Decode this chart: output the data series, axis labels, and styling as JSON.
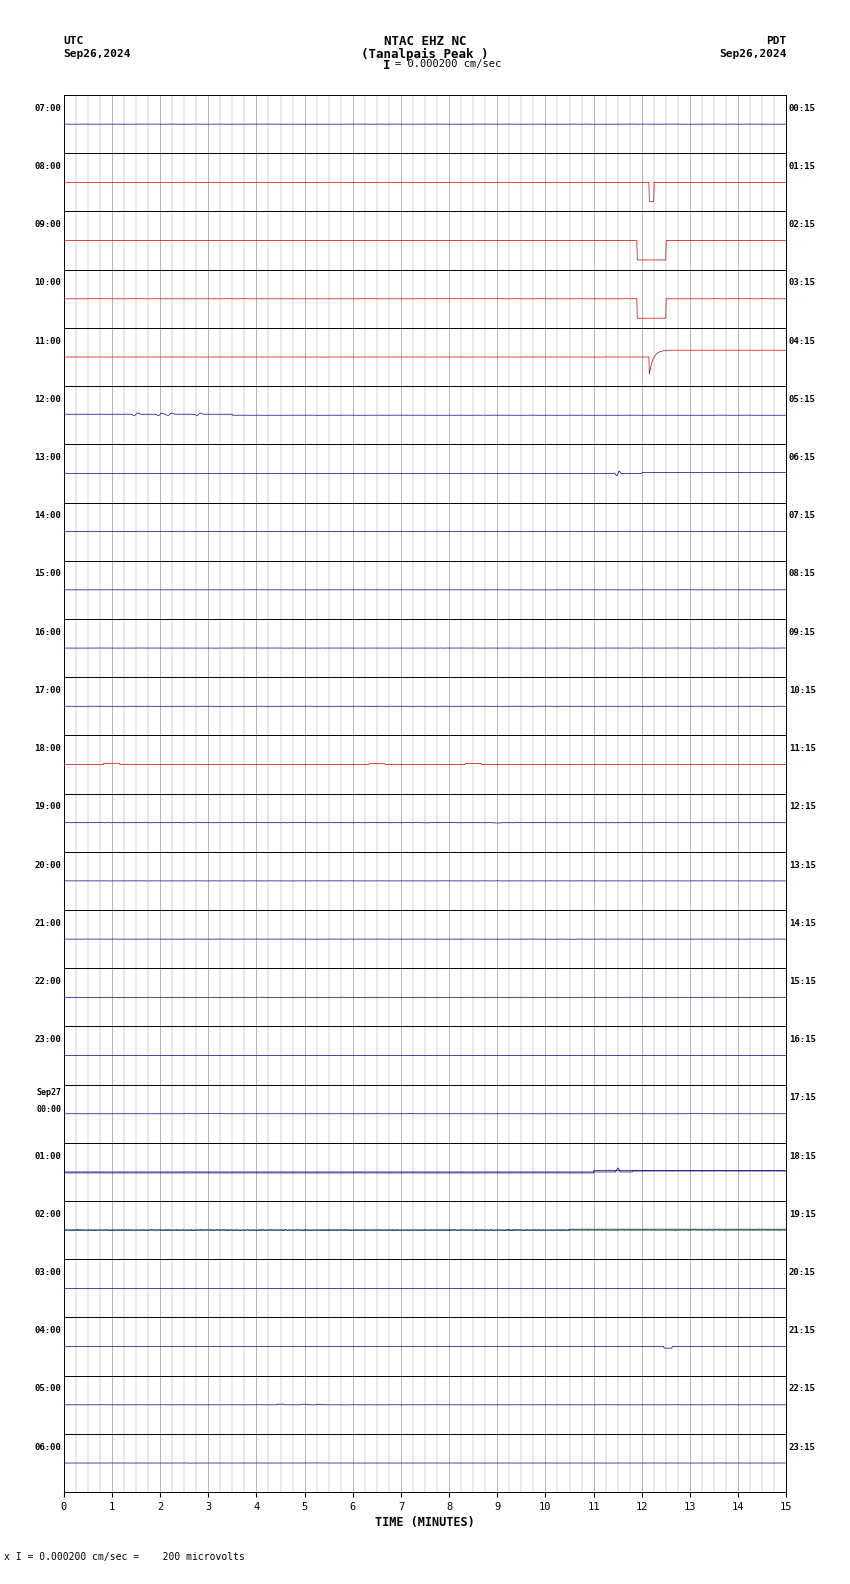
{
  "title_line1": "NTAC EHZ NC",
  "title_line2": "(Tanalpais Peak )",
  "scale_text": "= 0.000200 cm/sec",
  "utc_label": "UTC",
  "utc_date": "Sep26,2024",
  "pdt_label": "PDT",
  "pdt_date": "Sep26,2024",
  "xlabel": "TIME (MINUTES)",
  "bottom_note": "x I = 0.000200 cm/sec =    200 microvolts",
  "x_min": 0,
  "x_max": 15,
  "num_rows": 24,
  "row_labels_left": [
    "07:00",
    "08:00",
    "09:00",
    "10:00",
    "11:00",
    "12:00",
    "13:00",
    "14:00",
    "15:00",
    "16:00",
    "17:00",
    "18:00",
    "19:00",
    "20:00",
    "21:00",
    "22:00",
    "23:00",
    "Sep27\n00:00",
    "01:00",
    "02:00",
    "03:00",
    "04:00",
    "05:00",
    "06:00"
  ],
  "row_labels_right": [
    "00:15",
    "01:15",
    "02:15",
    "03:15",
    "04:15",
    "05:15",
    "06:15",
    "07:15",
    "08:15",
    "09:15",
    "10:15",
    "11:15",
    "12:15",
    "13:15",
    "14:15",
    "15:15",
    "16:15",
    "17:15",
    "18:15",
    "19:15",
    "20:15",
    "21:15",
    "22:15",
    "23:15"
  ],
  "bg_color": "#ffffff",
  "grid_color": "#999999",
  "line_color_normal": "#000080",
  "line_color_red": "#cc0000",
  "line_color_green": "#006600",
  "fig_width": 8.5,
  "fig_height": 15.84,
  "dpi": 100
}
